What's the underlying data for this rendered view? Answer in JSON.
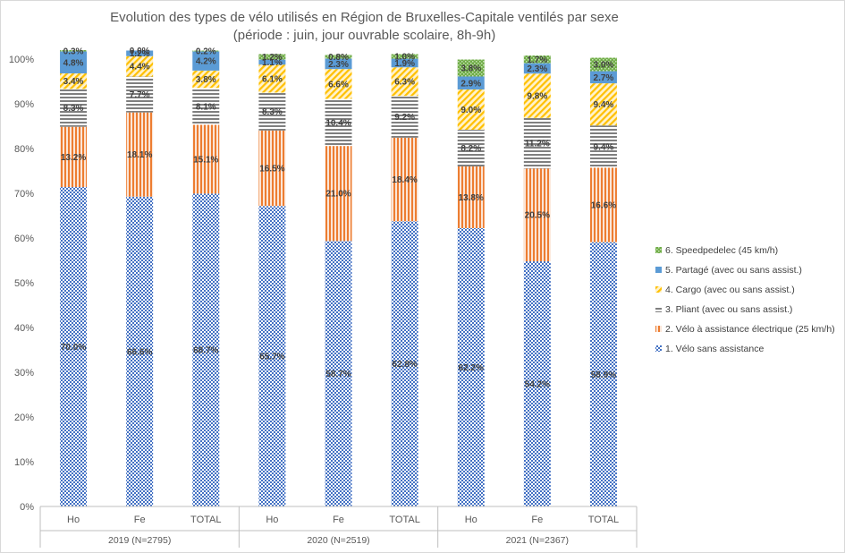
{
  "chart_data": {
    "type": "bar",
    "stacked": true,
    "title": "Evolution des types de vélo utilisés en Région de Bruxelles-Capitale ventilés par sexe",
    "subtitle": "(période : juin, jour ouvrable scolaire, 8h-9h)",
    "xlabel": "",
    "ylabel": "",
    "ylim": [
      0,
      100
    ],
    "yticks": [
      "0%",
      "10%",
      "20%",
      "30%",
      "40%",
      "50%",
      "60%",
      "70%",
      "80%",
      "90%",
      "100%"
    ],
    "grid": false,
    "legend_position": "right",
    "categories": [
      "Ho",
      "Fe",
      "TOTAL",
      "Ho",
      "Fe",
      "TOTAL",
      "Ho",
      "Fe",
      "TOTAL"
    ],
    "groups": [
      {
        "label": "2019 (N=2795)",
        "size": 3
      },
      {
        "label": "2020 (N=2519)",
        "size": 3
      },
      {
        "label": "2021 (N=2367)",
        "size": 3
      }
    ],
    "series": [
      {
        "name": "1. Vélo sans assistance",
        "color": "#4472c4",
        "pattern": "checker",
        "values": [
          70.0,
          66.6,
          68.7,
          65.7,
          58.7,
          62.8,
          62.2,
          54.2,
          58.9
        ],
        "labels": [
          "70.0%",
          "66.6%",
          "68.7%",
          "65.7%",
          "58.7%",
          "62.8%",
          "62.2%",
          "54.2%",
          "58.9%"
        ]
      },
      {
        "name": "2. Vélo à assistance électrique (25 km/h)",
        "color": "#ed7d31",
        "pattern": "vertical",
        "values": [
          13.2,
          18.1,
          15.1,
          16.5,
          21.0,
          18.4,
          13.8,
          20.5,
          16.6
        ],
        "labels": [
          "13.2%",
          "18.1%",
          "15.1%",
          "16.5%",
          "21.0%",
          "18.4%",
          "13.8%",
          "20.5%",
          "16.6%"
        ]
      },
      {
        "name": "3. Pliant (avec ou sans assist.)",
        "color": "#7f7f7f",
        "pattern": "horizontal",
        "values": [
          8.3,
          7.7,
          8.1,
          8.3,
          10.4,
          9.2,
          8.2,
          11.2,
          9.4
        ],
        "labels": [
          "8.3%",
          "7.7%",
          "8.1%",
          "8.3%",
          "10.4%",
          "9.2%",
          "8.2%",
          "11.2%",
          "9.4%"
        ]
      },
      {
        "name": "4. Cargo (avec ou sans assist.)",
        "color": "#ffc000",
        "pattern": "diagonal",
        "values": [
          3.4,
          4.4,
          3.8,
          6.1,
          6.6,
          6.3,
          9.0,
          9.8,
          9.4
        ],
        "labels": [
          "3.4%",
          "4.4%",
          "3.8%",
          "6.1%",
          "6.6%",
          "6.3%",
          "9.0%",
          "9.8%",
          "9.4%"
        ]
      },
      {
        "name": "5. Partagé (avec ou sans assist.)",
        "color": "#5b9bd5",
        "pattern": "solid",
        "values": [
          4.8,
          1.2,
          4.2,
          1.1,
          2.3,
          1.9,
          2.9,
          2.3,
          2.7
        ],
        "labels": [
          "4.8%",
          "1.2%",
          "4.2%",
          "1.1%",
          "2.3%",
          "1.9%",
          "2.9%",
          "2.3%",
          "2.7%"
        ]
      },
      {
        "name": "6. Speedpedelec (45 km/h)",
        "color": "#70ad47",
        "pattern": "dots",
        "values": [
          0.3,
          0.0,
          0.2,
          1.2,
          0.8,
          1.0,
          3.8,
          1.7,
          3.0
        ],
        "labels": [
          "0.3%",
          "0.0%",
          "0.2%",
          "1.2%",
          "0.8%",
          "1.0%",
          "3.8%",
          "1.7%",
          "3.0%"
        ]
      }
    ],
    "visual_stack_totals": [
      102,
      101.9,
      101.9,
      101.1,
      100.9,
      101.1,
      99.9,
      100.8,
      100.3
    ]
  }
}
